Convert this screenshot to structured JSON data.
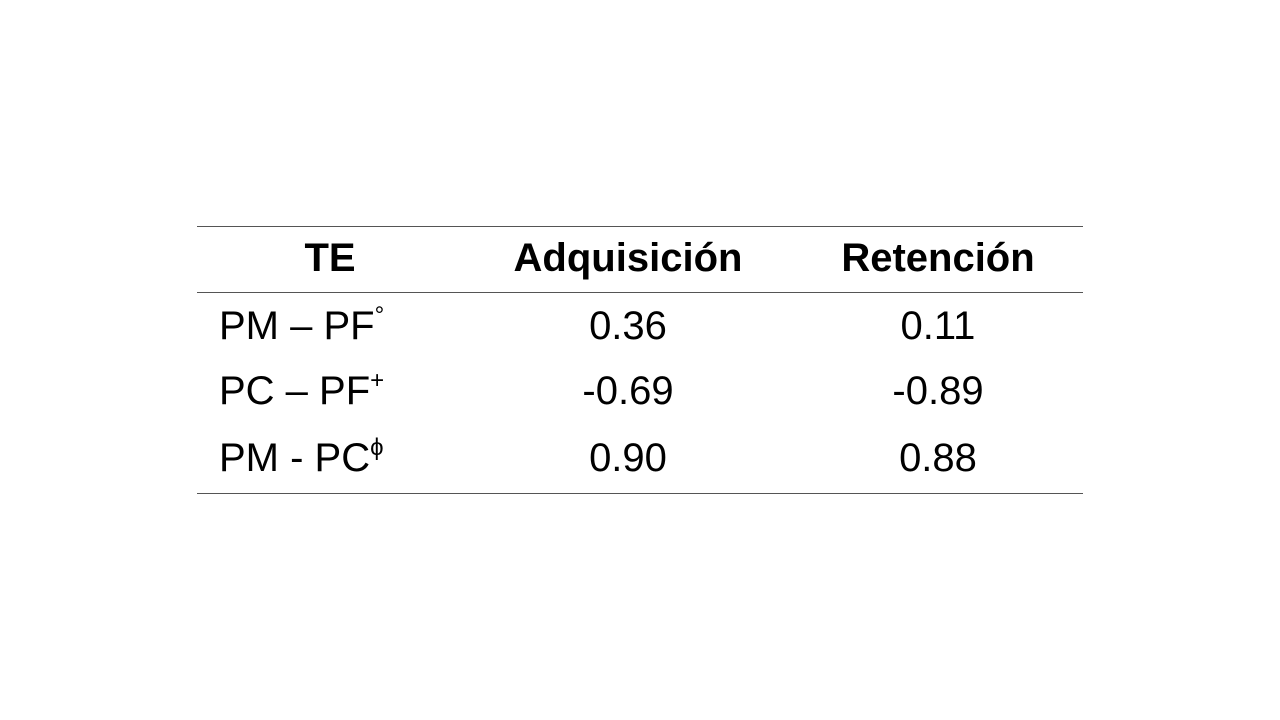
{
  "table": {
    "header": [
      "TE",
      "Adquisición",
      "Retención"
    ],
    "rows": [
      [
        {
          "text": "PM – PF",
          "sup": "°"
        },
        "0.36",
        "0.11"
      ],
      [
        {
          "text": "PC – PF",
          "sup": "+"
        },
        "-0.69",
        "-0.89"
      ],
      [
        {
          "text": "PM - PC",
          "sup": "ϕ"
        },
        "0.90",
        "0.88"
      ]
    ]
  }
}
